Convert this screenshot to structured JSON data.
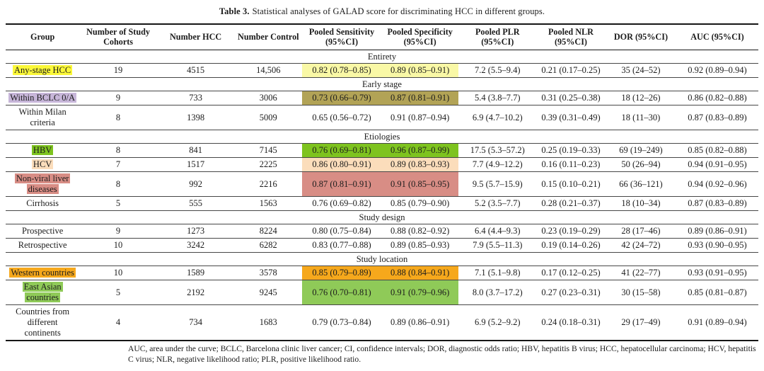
{
  "title": {
    "label": "Table 3.",
    "text": "Statistical analyses of GALAD score for discriminating HCC in different groups."
  },
  "colors": {
    "bright_yellow": "#fbf838",
    "pale_yellow": "#f9f8a6",
    "lavender": "#c7b6d9",
    "olive": "#b2a356",
    "green": "#7ec31f",
    "peach": "#fbddbb",
    "rose": "#d88d85",
    "orange": "#f6a81c",
    "light_green": "#8fca58"
  },
  "table": {
    "columns": [
      "Group",
      "Number of Study Cohorts",
      "Number HCC",
      "Number Control",
      "Pooled Sensitivity (95%CI)",
      "Pooled Specificity (95%CI)",
      "Pooled PLR (95%CI)",
      "Pooled NLR (95%CI)",
      "DOR (95%CI)",
      "AUC (95%CI)"
    ],
    "sections": [
      {
        "name": "Entirety",
        "rows": [
          {
            "group": "Any-stage HCC",
            "group_hl": "bright_yellow",
            "band_hl": "pale_yellow",
            "cells": [
              "19",
              "4515",
              "14,506",
              "0.82 (0.78–0.85)",
              "0.89 (0.85–0.91)",
              "7.2 (5.5–9.4)",
              "0.21 (0.17–0.25)",
              "35 (24–52)",
              "0.92 (0.89–0.94)"
            ]
          }
        ]
      },
      {
        "name": "Early stage",
        "rows": [
          {
            "group": "Within BCLC 0/A",
            "group_hl": "lavender",
            "band_hl": "olive",
            "cells": [
              "9",
              "733",
              "3006",
              "0.73 (0.66–0.79)",
              "0.87 (0.81–0.91)",
              "5.4 (3.8–7.7)",
              "0.31 (0.25–0.38)",
              "18 (12–26)",
              "0.86 (0.82–0.88)"
            ]
          },
          {
            "group": "Within Milan criteria",
            "group_hl": null,
            "band_hl": null,
            "cells": [
              "8",
              "1398",
              "5009",
              "0.65 (0.56–0.72)",
              "0.91 (0.87–0.94)",
              "6.9 (4.7–10.2)",
              "0.39 (0.31–0.49)",
              "18 (11–30)",
              "0.87 (0.83–0.89)"
            ]
          }
        ]
      },
      {
        "name": "Etiologies",
        "rows": [
          {
            "group": "HBV",
            "group_hl": "green",
            "band_hl": "green",
            "cells": [
              "8",
              "841",
              "7145",
              "0.76 (0.69–0.81)",
              "0.96 (0.87–0.99)",
              "17.5 (5.3–57.2)",
              "0.25 (0.19–0.33)",
              "69 (19–249)",
              "0.85 (0.82–0.88)"
            ]
          },
          {
            "group": "HCV",
            "group_hl": "peach",
            "band_hl": "peach",
            "cells": [
              "7",
              "1517",
              "2225",
              "0.86 (0.80–0.91)",
              "0.89 (0.83–0.93)",
              "7.7 (4.9–12.2)",
              "0.16 (0.11–0.23)",
              "50 (26–94)",
              "0.94 (0.91–0.95)"
            ]
          },
          {
            "group": "Non-viral liver diseases",
            "group_hl": "rose",
            "band_hl": "rose",
            "cells": [
              "8",
              "992",
              "2216",
              "0.87 (0.81–0.91)",
              "0.91 (0.85–0.95)",
              "9.5 (5.7–15.9)",
              "0.15 (0.10–0.21)",
              "66 (36–121)",
              "0.94 (0.92–0.96)"
            ]
          },
          {
            "group": "Cirrhosis",
            "group_hl": null,
            "band_hl": null,
            "cells": [
              "5",
              "555",
              "1563",
              "0.76 (0.69–0.82)",
              "0.85 (0.79–0.90)",
              "5.2 (3.5–7.7)",
              "0.28 (0.21–0.37)",
              "18 (10–34)",
              "0.87 (0.83–0.89)"
            ]
          }
        ]
      },
      {
        "name": "Study design",
        "rows": [
          {
            "group": "Prospective",
            "group_hl": null,
            "band_hl": null,
            "cells": [
              "9",
              "1273",
              "8224",
              "0.80 (0.75–0.84)",
              "0.88 (0.82–0.92)",
              "6.4 (4.4–9.3)",
              "0.23 (0.19–0.29)",
              "28 (17–46)",
              "0.89 (0.86–0.91)"
            ]
          },
          {
            "group": "Retrospective",
            "group_hl": null,
            "band_hl": null,
            "cells": [
              "10",
              "3242",
              "6282",
              "0.83 (0.77–0.88)",
              "0.89 (0.85–0.93)",
              "7.9 (5.5–11.3)",
              "0.19 (0.14–0.26)",
              "42 (24–72)",
              "0.93 (0.90–0.95)"
            ]
          }
        ]
      },
      {
        "name": "Study location",
        "rows": [
          {
            "group": "Western countries",
            "group_hl": "orange",
            "band_hl": "orange",
            "cells": [
              "10",
              "1589",
              "3578",
              "0.85 (0.79–0.89)",
              "0.88 (0.84–0.91)",
              "7.1 (5.1–9.8)",
              "0.17 (0.12–0.25)",
              "41 (22–77)",
              "0.93 (0.91–0.95)"
            ]
          },
          {
            "group": "East Asian countries",
            "group_hl": "light_green",
            "band_hl": "light_green",
            "cells": [
              "5",
              "2192",
              "9245",
              "0.76 (0.70–0.81)",
              "0.91 (0.79–0.96)",
              "8.0 (3.7–17.2)",
              "0.27 (0.23–0.31)",
              "30 (15–58)",
              "0.85 (0.81–0.87)"
            ]
          },
          {
            "group": "Countries from different continents",
            "group_hl": null,
            "band_hl": null,
            "cells": [
              "4",
              "734",
              "1683",
              "0.79 (0.73–0.84)",
              "0.89 (0.86–0.91)",
              "6.9 (5.2–9.2)",
              "0.24 (0.18–0.31)",
              "29 (17–49)",
              "0.91 (0.89–0.94)"
            ]
          }
        ]
      }
    ]
  },
  "footnote": "AUC, area under the curve; BCLC, Barcelona clinic liver cancer; CI, confidence intervals; DOR, diagnostic odds ratio; HBV, hepatitis B virus; HCC, hepatocellular carcinoma; HCV, hepatitis C virus; NLR, negative likelihood ratio; PLR, positive likelihood ratio."
}
